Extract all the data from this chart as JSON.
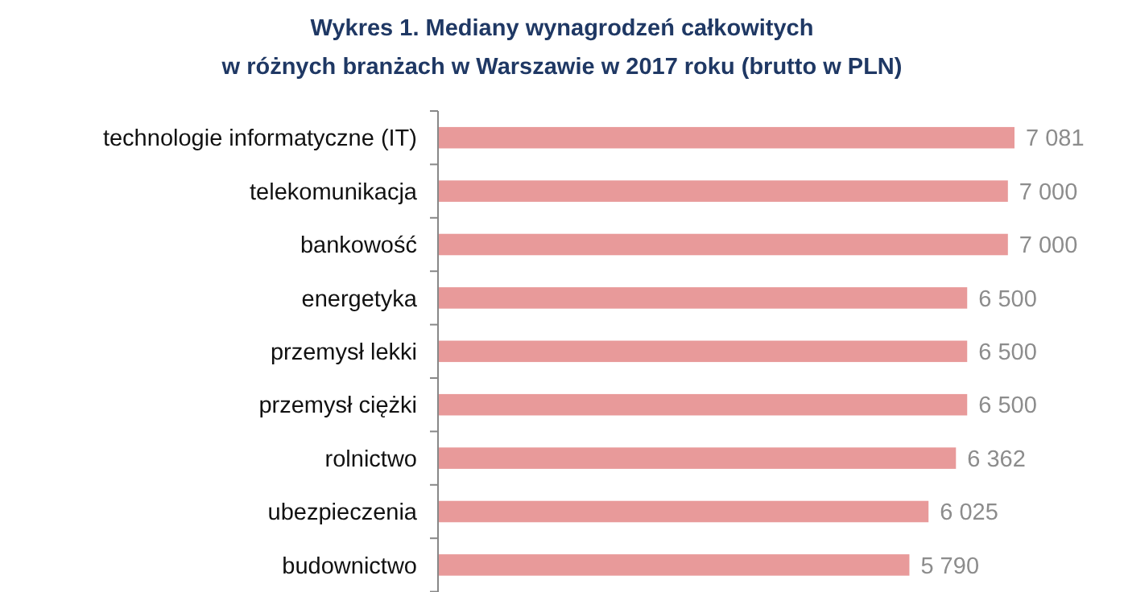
{
  "chart_data": {
    "type": "bar",
    "orientation": "horizontal",
    "relative": false,
    "title": "Wykres 1. Mediany wynagrodzeń całkowitych\nw różnych branżach w Warszawie w 2017 roku (brutto w PLN)",
    "categories": [
      "technologie informatyczne (IT)",
      "telekomunikacja",
      "bankowość",
      "energetyka",
      "przemysł lekki",
      "przemysł ciężki",
      "rolnictwo",
      "ubezpieczenia",
      "budownictwo"
    ],
    "values": [
      7081,
      7000,
      7000,
      6500,
      6500,
      6500,
      6362,
      6025,
      5790
    ],
    "value_labels": [
      "7 081",
      "7 000",
      "7 000",
      "6 500",
      "6 500",
      "6 500",
      "6 362",
      "6 025",
      "5 790"
    ],
    "color": "#e89a9a"
  }
}
